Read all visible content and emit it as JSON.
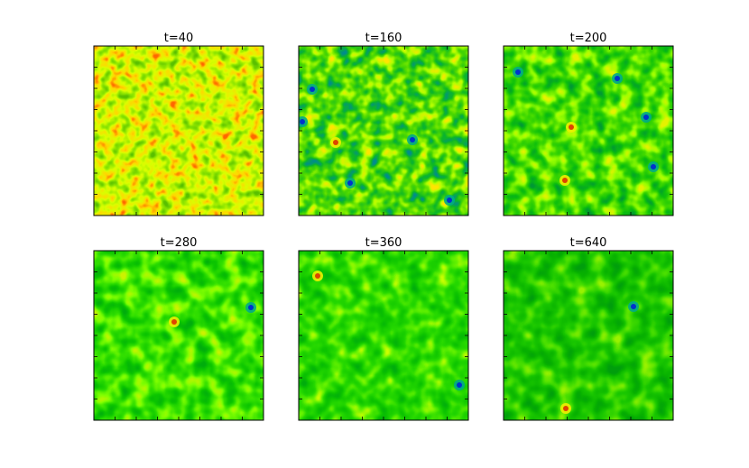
{
  "panels": [
    {
      "title": "t=40"
    },
    {
      "title": "t=160"
    },
    {
      "title": "t=200"
    },
    {
      "title": "t=280"
    },
    {
      "title": "t=360"
    },
    {
      "title": "t=640"
    }
  ]
}
